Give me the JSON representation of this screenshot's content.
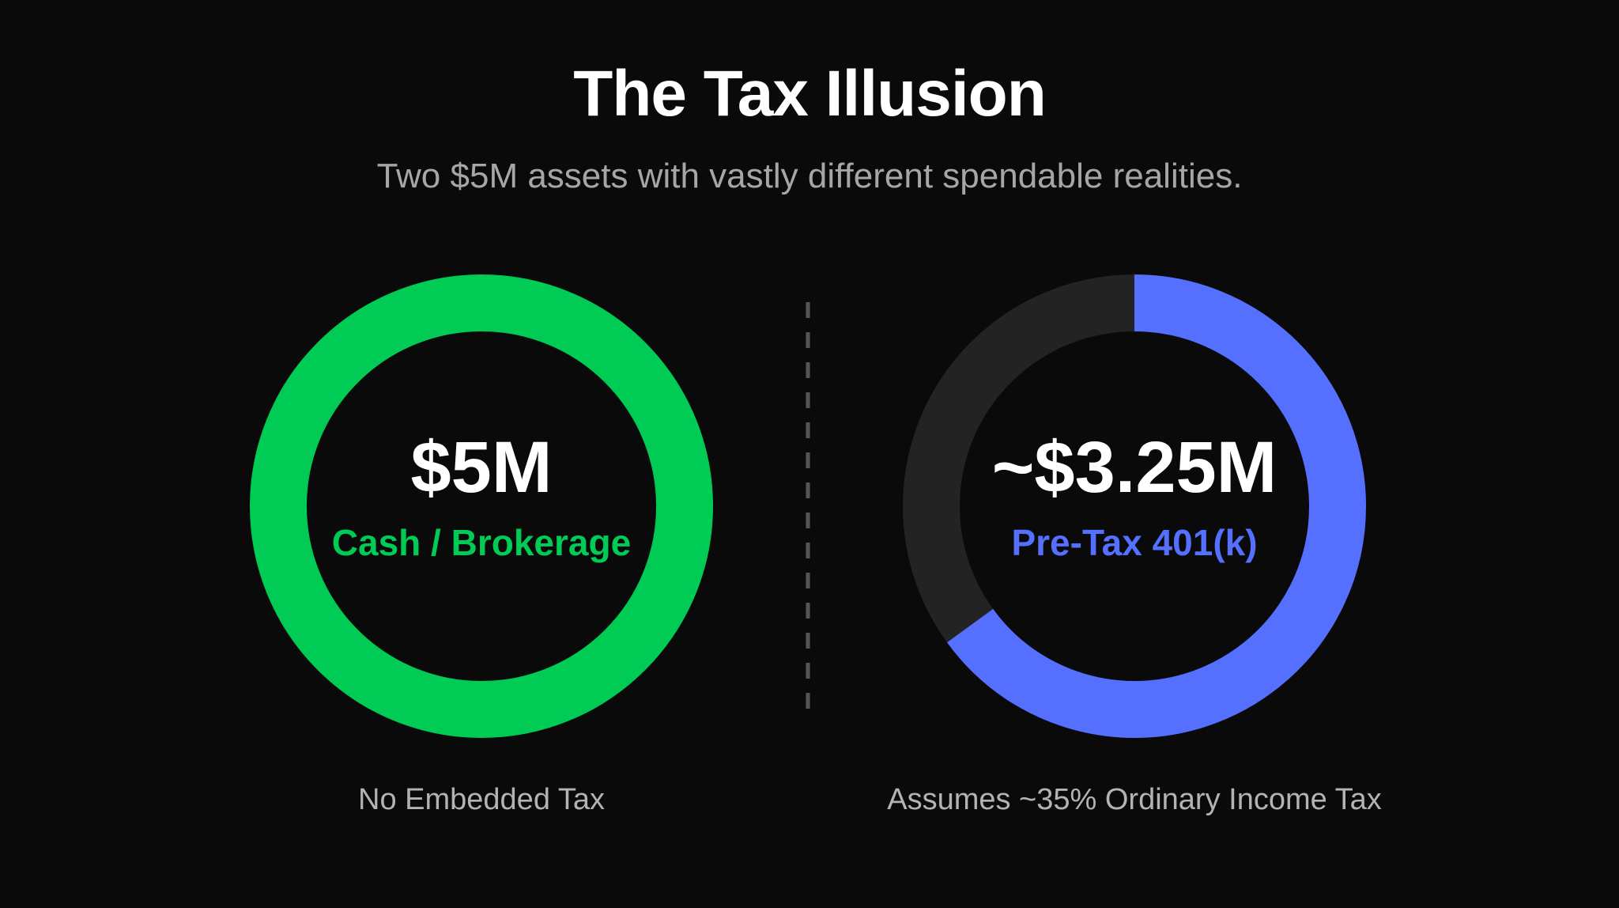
{
  "header": {
    "title": "The Tax Illusion",
    "subtitle": "Two $5M assets with vastly different spendable realities."
  },
  "chart_data": [
    {
      "type": "pie",
      "variant": "donut",
      "center_value": "$5M",
      "center_label": "Cash / Brokerage",
      "caption": "No Embedded Tax",
      "slices": [
        {
          "value": 100,
          "color": "#00cc55"
        }
      ],
      "label_color": "#00cc55"
    },
    {
      "type": "pie",
      "variant": "donut",
      "center_value": "~$3.25M",
      "center_label": "Pre-Tax 401(k)",
      "caption": "Assumes ~35% Ordinary Income Tax",
      "slices": [
        {
          "value": 65,
          "color": "#5570ff"
        },
        {
          "value": 35,
          "color": "#232323"
        }
      ],
      "label_color": "#5570ff"
    }
  ],
  "colors": {
    "background": "#0a0a0a",
    "divider": "#555555"
  }
}
